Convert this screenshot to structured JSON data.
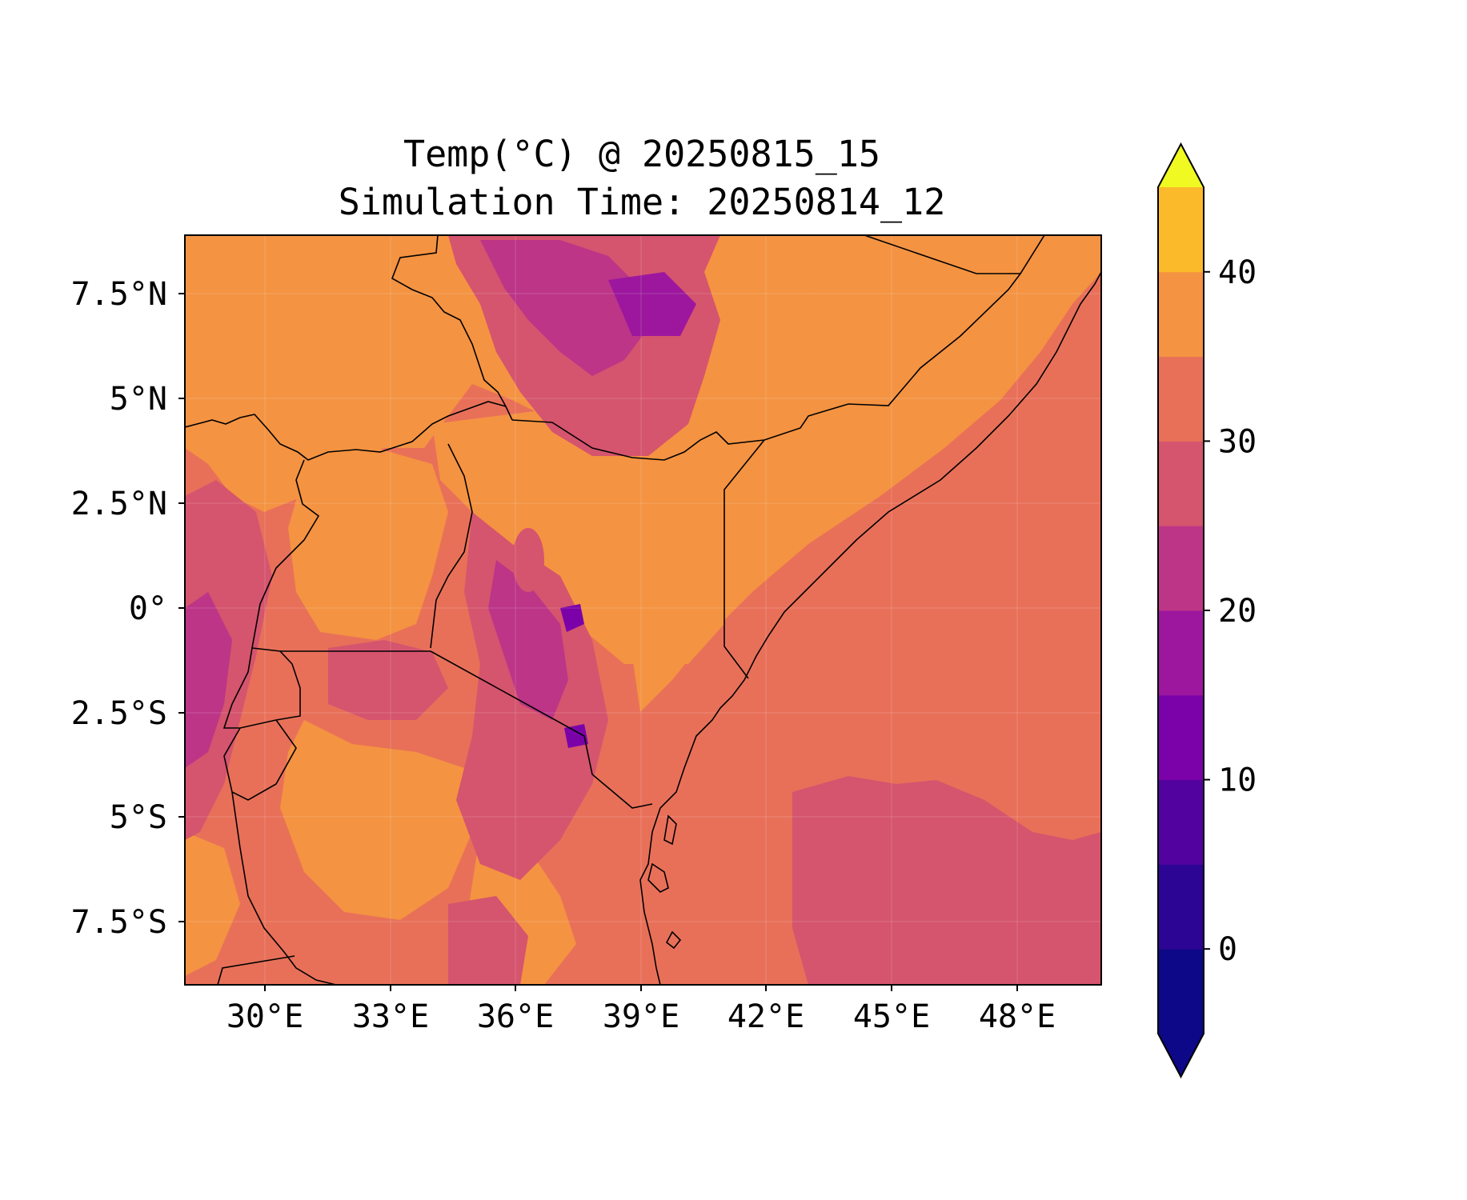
{
  "title_line1": "Temp(°C) @ 20250815_15",
  "title_line2": "Simulation Time: 20250814_12",
  "x_ticks": [
    "30°E",
    "33°E",
    "36°E",
    "39°E",
    "42°E",
    "45°E",
    "48°E"
  ],
  "y_ticks": [
    "7.5°N",
    "5°N",
    "2.5°N",
    "0°",
    "2.5°S",
    "5°S",
    "7.5°S"
  ],
  "colorbar": {
    "tick_labels": [
      "0",
      "10",
      "20",
      "30",
      "40"
    ],
    "min": -5,
    "max": 45,
    "step": 5,
    "extend": "both",
    "colors": [
      "#0d0887",
      "#2c0594",
      "#52039f",
      "#7a02a8",
      "#9c179e",
      "#bc3587",
      "#d5546e",
      "#e87059",
      "#f49342",
      "#fbba29",
      "#f0f921"
    ]
  },
  "chart_data": {
    "type": "heatmap",
    "title": "Temp(°C) @ 20250815_15\nSimulation Time: 20250814_12",
    "xlim": [
      28.0,
      50.0
    ],
    "ylim": [
      -9.0,
      9.0
    ],
    "x_ticks": [
      30,
      33,
      36,
      39,
      42,
      45,
      48
    ],
    "y_ticks": [
      7.5,
      5,
      2.5,
      0,
      -2.5,
      -5,
      -7.5
    ],
    "colorbar_range": [
      -5,
      45
    ],
    "colorbar_levels": [
      -5,
      0,
      5,
      10,
      15,
      20,
      25,
      30,
      35,
      40,
      45
    ],
    "grid": true
  }
}
